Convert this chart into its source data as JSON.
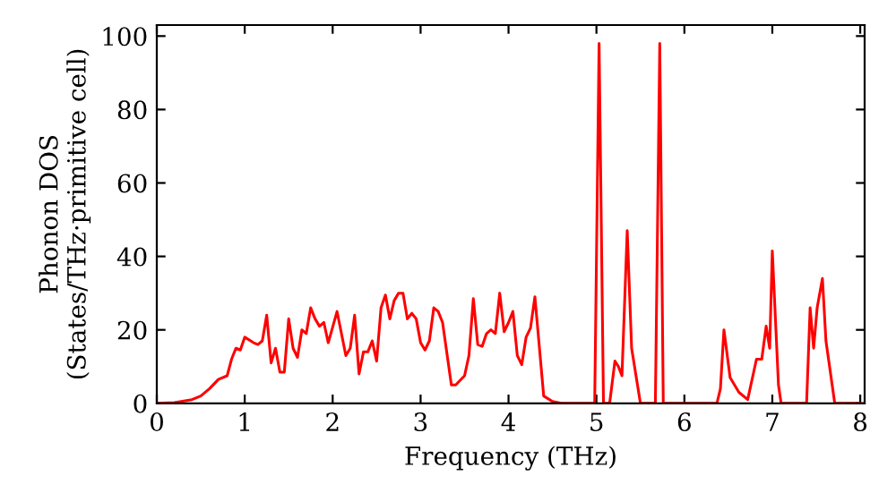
{
  "chart_data": {
    "type": "line",
    "xlabel": "Frequency (THz)",
    "ylabel": "Phonon DOS\n(States/THz·primitive cell)",
    "xlim": [
      0,
      8.05
    ],
    "ylim": [
      0,
      103
    ],
    "xticks": [
      0,
      1,
      2,
      3,
      4,
      5,
      6,
      7,
      8
    ],
    "yticks": [
      0,
      20,
      40,
      60,
      80,
      100
    ],
    "marker": "none",
    "line_style": "solid",
    "series": [
      {
        "color": "#ff0000",
        "x": [
          0,
          0.2,
          0.4,
          0.5,
          0.6,
          0.7,
          0.8,
          0.85,
          0.9,
          0.95,
          1.0,
          1.1,
          1.15,
          1.2,
          1.25,
          1.3,
          1.35,
          1.4,
          1.45,
          1.5,
          1.55,
          1.6,
          1.65,
          1.7,
          1.75,
          1.8,
          1.85,
          1.9,
          1.95,
          2.05,
          2.1,
          2.15,
          2.2,
          2.25,
          2.3,
          2.35,
          2.4,
          2.45,
          2.5,
          2.55,
          2.6,
          2.65,
          2.7,
          2.75,
          2.8,
          2.85,
          2.9,
          2.95,
          3.0,
          3.05,
          3.1,
          3.15,
          3.2,
          3.25,
          3.35,
          3.4,
          3.5,
          3.55,
          3.6,
          3.65,
          3.7,
          3.75,
          3.8,
          3.85,
          3.9,
          3.95,
          4.0,
          4.05,
          4.1,
          4.15,
          4.2,
          4.25,
          4.3,
          4.4,
          4.5,
          4.6,
          4.98,
          5.03,
          5.08,
          5.15,
          5.21,
          5.25,
          5.29,
          5.35,
          5.4,
          5.5,
          5.67,
          5.72,
          5.76,
          6.37,
          6.41,
          6.45,
          6.52,
          6.62,
          6.72,
          6.82,
          6.88,
          6.93,
          6.97,
          7.0,
          7.07,
          7.1,
          7.39,
          7.43,
          7.47,
          7.51,
          7.57,
          7.61,
          7.71,
          8.0
        ],
        "values": [
          0,
          0.2,
          1,
          2,
          4,
          6.5,
          7.5,
          12,
          15,
          14.5,
          18,
          16.5,
          16,
          17,
          24,
          11,
          15,
          8.5,
          8.5,
          23,
          15,
          12.5,
          20,
          19,
          26,
          23,
          21,
          22,
          16.5,
          25,
          19,
          13,
          15,
          24,
          8,
          14,
          14,
          17,
          11.5,
          26,
          29.5,
          23,
          28,
          30,
          30,
          23,
          24.5,
          23,
          16.5,
          14.5,
          17,
          26,
          25,
          22,
          5,
          5,
          7.5,
          13,
          28.5,
          16,
          15.5,
          19,
          20,
          19,
          30,
          19.5,
          22,
          25,
          13,
          10.5,
          18,
          20.5,
          29,
          2,
          0.5,
          0,
          0,
          98,
          0,
          0,
          11.5,
          10,
          7.5,
          47,
          15,
          0,
          0,
          98,
          0,
          0,
          4,
          20,
          7,
          3,
          1,
          12,
          12,
          21,
          15,
          41.5,
          5,
          0,
          0,
          26,
          15,
          26,
          34,
          17,
          0,
          0
        ]
      }
    ]
  }
}
